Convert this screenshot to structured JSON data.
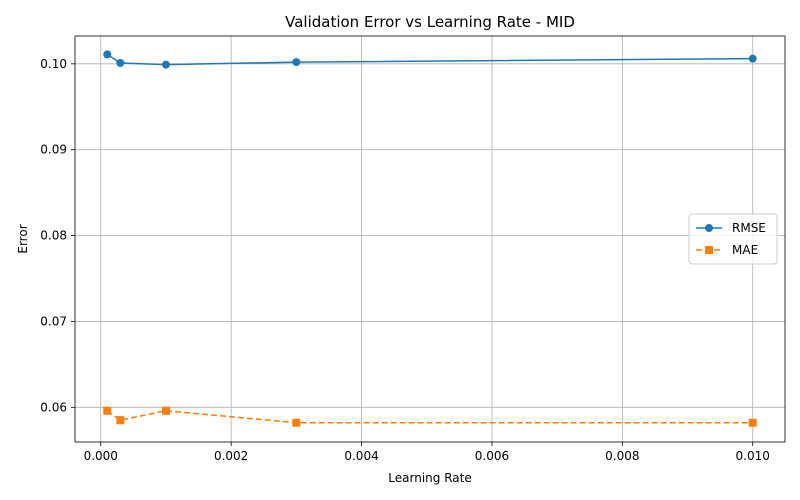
{
  "chart_data": {
    "type": "line",
    "title": "Validation Error vs Learning Rate - MID",
    "xlabel": "Learning Rate",
    "ylabel": "Error",
    "xlim": [
      -0.000395,
      0.010495
    ],
    "ylim": [
      0.05596,
      0.10324
    ],
    "x_ticks": [
      0.0,
      0.002,
      0.004,
      0.006,
      0.008,
      0.01
    ],
    "x_tick_labels": [
      "0.000",
      "0.002",
      "0.004",
      "0.006",
      "0.008",
      "0.010"
    ],
    "y_ticks": [
      0.06,
      0.07,
      0.08,
      0.09,
      0.1
    ],
    "y_tick_labels": [
      "0.06",
      "0.07",
      "0.08",
      "0.09",
      "0.10"
    ],
    "grid": true,
    "legend_position": "center-right",
    "x": [
      0.0001,
      0.0003,
      0.001,
      0.003,
      0.01
    ],
    "series": [
      {
        "name": "RMSE",
        "values": [
          0.1011,
          0.1001,
          0.0999,
          0.1002,
          0.1006
        ],
        "color": "#1f77b4",
        "marker": "circle",
        "linestyle": "solid"
      },
      {
        "name": "MAE",
        "values": [
          0.0596,
          0.0585,
          0.0596,
          0.0582,
          0.0582
        ],
        "color": "#ff7f0e",
        "marker": "square",
        "linestyle": "dashed"
      }
    ]
  }
}
